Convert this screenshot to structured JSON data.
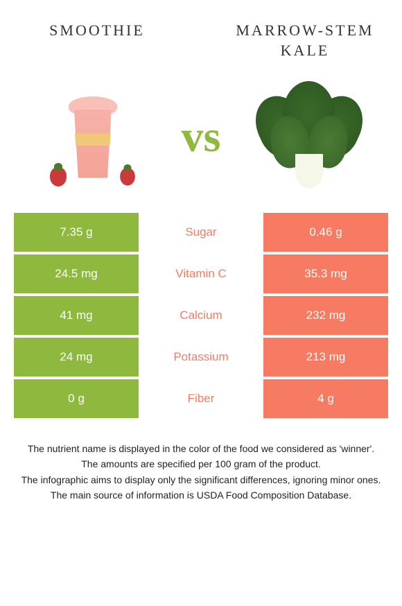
{
  "colors": {
    "green": "#8fb93e",
    "coral": "#f77b62",
    "text": "#333333"
  },
  "header": {
    "left_title": "SMOOTHIE",
    "right_title": "MARROW-STEM KALE",
    "vs": "vs"
  },
  "rows": [
    {
      "left": "7.35 g",
      "label": "Sugar",
      "right": "0.46 g",
      "winner": "right"
    },
    {
      "left": "24.5 mg",
      "label": "Vitamin C",
      "right": "35.3 mg",
      "winner": "right"
    },
    {
      "left": "41 mg",
      "label": "Calcium",
      "right": "232 mg",
      "winner": "right"
    },
    {
      "left": "24 mg",
      "label": "Potassium",
      "right": "213 mg",
      "winner": "right"
    },
    {
      "left": "0 g",
      "label": "Fiber",
      "right": "4 g",
      "winner": "right"
    }
  ],
  "footer": {
    "l1": "The nutrient name is displayed in the color of the food we considered as 'winner'.",
    "l2": "The amounts are specified per 100 gram of the product.",
    "l3": "The infographic aims to display only the significant differences, ignoring minor ones.",
    "l4": "The main source of information is USDA Food Composition Database."
  }
}
